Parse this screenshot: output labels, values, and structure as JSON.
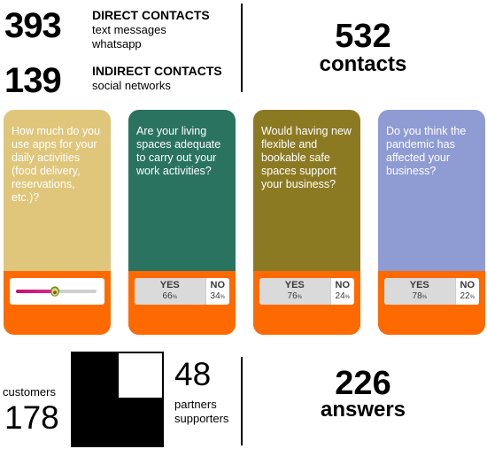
{
  "stats": {
    "direct": {
      "number": "393",
      "label": "DIRECT CONTACTS",
      "lines": [
        "text messages",
        "whatsapp"
      ]
    },
    "indirect": {
      "number": "139",
      "label": "INDIRECT CONTACTS",
      "lines": [
        "social networks"
      ]
    },
    "total": {
      "number": "532",
      "label": "contacts"
    }
  },
  "cards": [
    {
      "question": "How much do you use apps for your daily activities (food delivery, reservations, etc.)?",
      "color": "#e0c67b",
      "type": "slider",
      "level": 0.48
    },
    {
      "question": "Are your living spaces adequate to carry out your work activities?",
      "color": "#2a7360",
      "type": "poll",
      "yes_label": "YES",
      "no_label": "NO",
      "yes": "66",
      "no": "34"
    },
    {
      "question": "Would having new flexible and bookable safe spaces support your business?",
      "color": "#8c7a23",
      "type": "poll",
      "yes_label": "YES",
      "no_label": "NO",
      "yes": "76",
      "no": "24"
    },
    {
      "question": "Do you think the pandemic has affected your business?",
      "color": "#8f9bd3",
      "type": "poll",
      "yes_label": "YES",
      "no_label": "NO",
      "yes": "78",
      "no": "22"
    }
  ],
  "bottom": {
    "customers": {
      "label": "customers",
      "number": "178"
    },
    "partners": {
      "number": "48",
      "lines": [
        "partners",
        "supporters"
      ]
    },
    "answers": {
      "number": "226",
      "label": "answers"
    }
  },
  "percent_sign": "%",
  "icons": {
    "slider_thumb": "avocado-icon"
  }
}
